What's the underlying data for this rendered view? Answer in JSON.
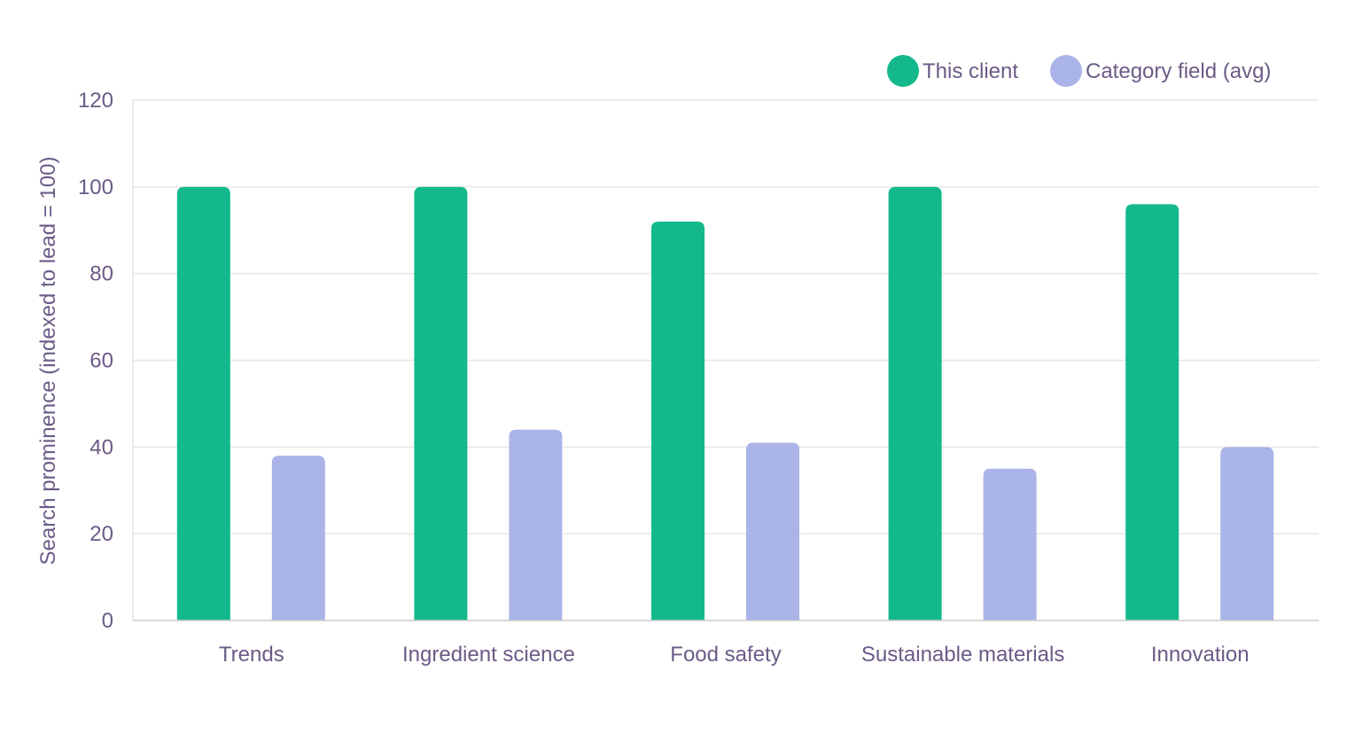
{
  "chart_data": {
    "type": "bar",
    "title": "",
    "xlabel": "",
    "ylabel": "Search prominence (indexed to lead = 100)",
    "ylim": [
      0,
      120
    ],
    "yticks": [
      0,
      20,
      40,
      60,
      80,
      100,
      120
    ],
    "grid": true,
    "legend_position": "top-right",
    "categories": [
      "Trends",
      "Ingredient science",
      "Food safety",
      "Sustainable materials",
      "Innovation"
    ],
    "series": [
      {
        "name": "This client",
        "color": "#13b98a",
        "values": [
          100,
          100,
          92,
          100,
          96
        ]
      },
      {
        "name": "Category field (avg)",
        "color": "#aab4e8",
        "values": [
          38,
          44,
          41,
          35,
          40
        ]
      }
    ],
    "colors": {
      "text": "#6b5b86",
      "grid": "#e6e6e6",
      "axis": "#cccccc"
    }
  }
}
